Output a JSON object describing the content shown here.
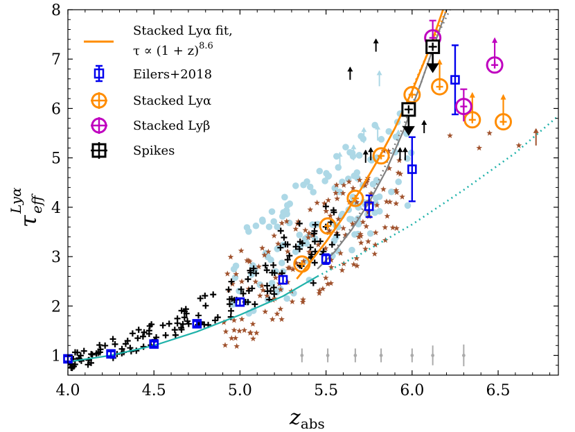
{
  "chart_data": {
    "type": "scatter",
    "title": "",
    "xlabel": "z",
    "xlabel_sub": "abs",
    "ylabel": "τ",
    "ylabel_sub": "eff",
    "ylabel_sup": "Lyα",
    "xlim": [
      4.0,
      6.85
    ],
    "ylim": [
      0.6,
      8.0
    ],
    "xticks": [
      "4.0",
      "4.5",
      "5.0",
      "5.5",
      "6.0",
      "6.5"
    ],
    "xtick_values": [
      4.0,
      4.5,
      5.0,
      5.5,
      6.0,
      6.5
    ],
    "yticks": [
      "1",
      "2",
      "3",
      "4",
      "5",
      "6",
      "7",
      "8"
    ],
    "ytick_values": [
      1,
      2,
      3,
      4,
      5,
      6,
      7,
      8
    ],
    "legend": {
      "placement": "top-left",
      "fit_line1": "Stacked Lyα fit,",
      "fit_line2": "τ ∝ (1 + z)",
      "fit_exponent": "8.6",
      "eilers": "Eilers+2018",
      "stacked_lya": "Stacked Lyα",
      "stacked_lyb": "Stacked Lyβ",
      "spikes": "Spikes"
    },
    "colors": {
      "eilers": "#0000ee",
      "stacked_lya": "#ff8c00",
      "stacked_lyb": "#bf00bf",
      "spikes": "#000000",
      "lightblue": "#add8e6",
      "brown": "#a0522d",
      "teal": "#20b2aa",
      "gray": "#808080"
    },
    "series": [
      {
        "name": "Stacked Lyα fit",
        "kind": "line",
        "x": [
          5.33,
          5.4,
          5.5,
          5.6,
          5.7,
          5.8,
          5.9,
          6.0,
          6.1,
          6.18
        ],
        "y": [
          2.55,
          2.85,
          3.3,
          3.8,
          4.35,
          4.95,
          5.6,
          6.35,
          7.2,
          8.0
        ]
      },
      {
        "name": "Eilers+2018",
        "kind": "errorbar-square",
        "x": [
          4.0,
          4.25,
          4.5,
          4.75,
          5.0,
          5.25,
          5.5,
          5.75,
          6.0,
          6.25
        ],
        "y": [
          0.93,
          1.03,
          1.23,
          1.64,
          2.08,
          2.53,
          2.95,
          4.02,
          4.77,
          6.58
        ],
        "err": [
          0.05,
          0.05,
          0.05,
          0.05,
          0.07,
          0.08,
          0.1,
          0.22,
          0.65,
          0.7
        ]
      },
      {
        "name": "Stacked Lyα",
        "kind": "errorbar-circle",
        "x": [
          5.36,
          5.51,
          5.67,
          5.82,
          6.0,
          6.16,
          6.35,
          6.53
        ],
        "y": [
          2.85,
          3.62,
          4.18,
          5.04,
          6.28,
          6.44,
          5.77,
          5.73
        ],
        "lower_limit": [
          false,
          false,
          false,
          false,
          false,
          true,
          true,
          true
        ]
      },
      {
        "name": "Stacked Lyβ",
        "kind": "errorbar-circle",
        "x": [
          6.12,
          6.3,
          6.48
        ],
        "y": [
          7.43,
          6.04,
          6.88
        ],
        "lower_limit": [
          false,
          false,
          true
        ]
      },
      {
        "name": "Spikes",
        "kind": "errorbar-square",
        "x": [
          5.98,
          6.12
        ],
        "y": [
          5.98,
          7.25
        ],
        "upper_limit": [
          true,
          true
        ]
      },
      {
        "name": "Low-z fit (cyan)",
        "kind": "line",
        "x": [
          4.0,
          4.25,
          4.5,
          4.75,
          5.0,
          5.25,
          5.45
        ],
        "y": [
          0.87,
          1.0,
          1.2,
          1.48,
          1.82,
          2.2,
          2.6
        ]
      },
      {
        "name": "Extrapolated (cyan dotted)",
        "kind": "dotted",
        "x": [
          5.45,
          5.7,
          6.0,
          6.3,
          6.6,
          6.85
        ],
        "y": [
          2.6,
          3.05,
          3.65,
          4.35,
          5.1,
          5.85
        ]
      },
      {
        "name": "Gray dotted fit",
        "kind": "dotted",
        "x": [
          5.5,
          5.65,
          5.8,
          5.95,
          6.05,
          6.15,
          6.22
        ],
        "y": [
          2.9,
          3.6,
          4.5,
          5.65,
          6.5,
          7.5,
          8.0
        ]
      },
      {
        "name": "Gray solid fit",
        "kind": "line",
        "x": [
          5.45,
          5.55,
          5.65,
          5.75,
          5.85,
          5.95,
          6.05,
          6.12,
          6.2
        ],
        "y": [
          2.75,
          3.1,
          3.55,
          4.1,
          4.75,
          5.55,
          6.5,
          7.2,
          8.0
        ]
      },
      {
        "name": "Orange dotted fit",
        "kind": "dotted",
        "x": [
          6.0,
          6.1,
          6.2
        ],
        "y": [
          6.4,
          7.2,
          8.0
        ]
      }
    ],
    "typical_errorbars": {
      "x": [
        5.36,
        5.51,
        5.67,
        5.82,
        6.0,
        6.12,
        6.3
      ],
      "y": 1.0,
      "half": [
        0.14,
        0.14,
        0.14,
        0.14,
        0.14,
        0.2,
        0.22
      ]
    },
    "black_arrows": {
      "x": [
        5.64,
        5.79,
        5.73,
        5.76,
        5.93,
        6.07,
        5.96
      ],
      "y": [
        6.58,
        7.15,
        4.9,
        4.95,
        4.95,
        5.5,
        4.95
      ]
    },
    "lightblue_arrows": {
      "x": [
        5.81,
        5.58,
        5.66,
        5.72,
        5.8,
        5.92
      ],
      "y": [
        6.45,
        4.8,
        4.95,
        5.3,
        5.35,
        5.25
      ]
    },
    "brown_arrows": [
      {
        "x": 6.72,
        "y": 5.25
      }
    ]
  }
}
